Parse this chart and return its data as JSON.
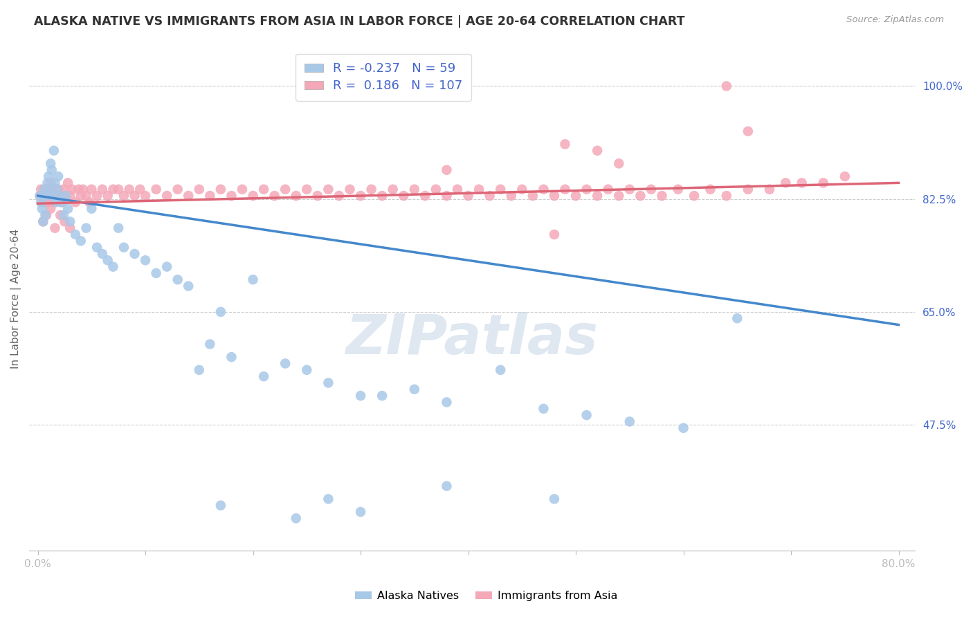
{
  "title": "ALASKA NATIVE VS IMMIGRANTS FROM ASIA IN LABOR FORCE | AGE 20-64 CORRELATION CHART",
  "source": "Source: ZipAtlas.com",
  "ylabel": "In Labor Force | Age 20-64",
  "xlim": [
    -0.008,
    0.815
  ],
  "ylim": [
    0.28,
    1.06
  ],
  "xtick_positions": [
    0.0,
    0.1,
    0.2,
    0.3,
    0.4,
    0.5,
    0.6,
    0.7,
    0.8
  ],
  "xticklabels": [
    "0.0%",
    "",
    "",
    "",
    "",
    "",
    "",
    "",
    "80.0%"
  ],
  "ytick_positions": [
    0.475,
    0.65,
    0.825,
    1.0
  ],
  "ytick_labels": [
    "47.5%",
    "65.0%",
    "82.5%",
    "100.0%"
  ],
  "blue_R": -0.237,
  "blue_N": 59,
  "pink_R": 0.186,
  "pink_N": 107,
  "blue_color": "#A8C8E8",
  "pink_color": "#F4A8B8",
  "blue_line_color": "#4488CC",
  "pink_line_color": "#DD6677",
  "legend_text_color": "#4466CC",
  "ytick_color": "#4466CC",
  "watermark": "ZIPatlas",
  "watermark_color": "#C5D5E5",
  "legend_label_blue": "Alaska Natives",
  "legend_label_pink": "Immigrants from Asia",
  "blue_line_x0": 0.0,
  "blue_line_y0": 0.83,
  "blue_line_x1": 0.8,
  "blue_line_y1": 0.63,
  "pink_line_x0": 0.0,
  "pink_line_y0": 0.818,
  "pink_line_x1": 0.8,
  "pink_line_y1": 0.85,
  "blue_scatter_x": [
    0.002,
    0.003,
    0.004,
    0.005,
    0.006,
    0.007,
    0.008,
    0.009,
    0.01,
    0.011,
    0.012,
    0.013,
    0.014,
    0.015,
    0.016,
    0.017,
    0.018,
    0.019,
    0.02,
    0.022,
    0.024,
    0.026,
    0.028,
    0.03,
    0.035,
    0.04,
    0.045,
    0.05,
    0.055,
    0.06,
    0.065,
    0.07,
    0.075,
    0.08,
    0.09,
    0.1,
    0.11,
    0.12,
    0.13,
    0.14,
    0.15,
    0.16,
    0.17,
    0.18,
    0.2,
    0.21,
    0.23,
    0.25,
    0.27,
    0.3,
    0.32,
    0.35,
    0.38,
    0.43,
    0.47,
    0.51,
    0.55,
    0.6,
    0.65
  ],
  "blue_scatter_y": [
    0.83,
    0.82,
    0.81,
    0.79,
    0.84,
    0.8,
    0.83,
    0.85,
    0.86,
    0.84,
    0.88,
    0.87,
    0.83,
    0.9,
    0.85,
    0.82,
    0.84,
    0.86,
    0.83,
    0.82,
    0.8,
    0.83,
    0.81,
    0.79,
    0.77,
    0.76,
    0.78,
    0.81,
    0.75,
    0.74,
    0.73,
    0.72,
    0.78,
    0.75,
    0.74,
    0.73,
    0.71,
    0.72,
    0.7,
    0.69,
    0.56,
    0.6,
    0.65,
    0.58,
    0.7,
    0.55,
    0.57,
    0.56,
    0.54,
    0.52,
    0.52,
    0.53,
    0.51,
    0.56,
    0.5,
    0.49,
    0.48,
    0.47,
    0.64
  ],
  "blue_scatter_y_outliers": [
    0.35,
    0.33,
    0.36,
    0.34,
    0.38,
    0.36
  ],
  "blue_scatter_x_outliers": [
    0.17,
    0.24,
    0.27,
    0.3,
    0.38,
    0.48
  ],
  "pink_scatter_x": [
    0.002,
    0.003,
    0.004,
    0.005,
    0.006,
    0.007,
    0.008,
    0.009,
    0.01,
    0.011,
    0.012,
    0.013,
    0.014,
    0.015,
    0.016,
    0.017,
    0.018,
    0.019,
    0.02,
    0.022,
    0.024,
    0.026,
    0.028,
    0.03,
    0.032,
    0.035,
    0.038,
    0.04,
    0.042,
    0.045,
    0.048,
    0.05,
    0.055,
    0.06,
    0.065,
    0.07,
    0.075,
    0.08,
    0.085,
    0.09,
    0.095,
    0.1,
    0.11,
    0.12,
    0.13,
    0.14,
    0.15,
    0.16,
    0.17,
    0.18,
    0.19,
    0.2,
    0.21,
    0.22,
    0.23,
    0.24,
    0.25,
    0.26,
    0.27,
    0.28,
    0.29,
    0.3,
    0.31,
    0.32,
    0.33,
    0.34,
    0.35,
    0.36,
    0.37,
    0.38,
    0.39,
    0.4,
    0.41,
    0.42,
    0.43,
    0.44,
    0.45,
    0.46,
    0.47,
    0.48,
    0.49,
    0.5,
    0.51,
    0.52,
    0.53,
    0.54,
    0.55,
    0.56,
    0.57,
    0.58,
    0.595,
    0.61,
    0.625,
    0.64,
    0.66,
    0.68,
    0.695,
    0.71,
    0.73,
    0.75,
    0.005,
    0.008,
    0.012,
    0.016,
    0.021,
    0.025,
    0.03
  ],
  "pink_scatter_y": [
    0.83,
    0.84,
    0.82,
    0.83,
    0.84,
    0.82,
    0.84,
    0.83,
    0.82,
    0.84,
    0.85,
    0.83,
    0.84,
    0.82,
    0.83,
    0.84,
    0.83,
    0.84,
    0.83,
    0.82,
    0.84,
    0.83,
    0.85,
    0.83,
    0.84,
    0.82,
    0.84,
    0.83,
    0.84,
    0.83,
    0.82,
    0.84,
    0.83,
    0.84,
    0.83,
    0.84,
    0.84,
    0.83,
    0.84,
    0.83,
    0.84,
    0.83,
    0.84,
    0.83,
    0.84,
    0.83,
    0.84,
    0.83,
    0.84,
    0.83,
    0.84,
    0.83,
    0.84,
    0.83,
    0.84,
    0.83,
    0.84,
    0.83,
    0.84,
    0.83,
    0.84,
    0.83,
    0.84,
    0.83,
    0.84,
    0.83,
    0.84,
    0.83,
    0.84,
    0.83,
    0.84,
    0.83,
    0.84,
    0.83,
    0.84,
    0.83,
    0.84,
    0.83,
    0.84,
    0.83,
    0.84,
    0.83,
    0.84,
    0.83,
    0.84,
    0.83,
    0.84,
    0.83,
    0.84,
    0.83,
    0.84,
    0.83,
    0.84,
    0.83,
    0.84,
    0.84,
    0.85,
    0.85,
    0.85,
    0.86,
    0.79,
    0.8,
    0.81,
    0.78,
    0.8,
    0.79,
    0.78
  ],
  "pink_outlier_x": [
    0.64,
    0.66,
    0.49,
    0.52,
    0.54,
    0.38,
    0.48
  ],
  "pink_outlier_y": [
    1.0,
    0.93,
    0.91,
    0.9,
    0.88,
    0.87,
    0.77
  ],
  "scatter_size": 110
}
